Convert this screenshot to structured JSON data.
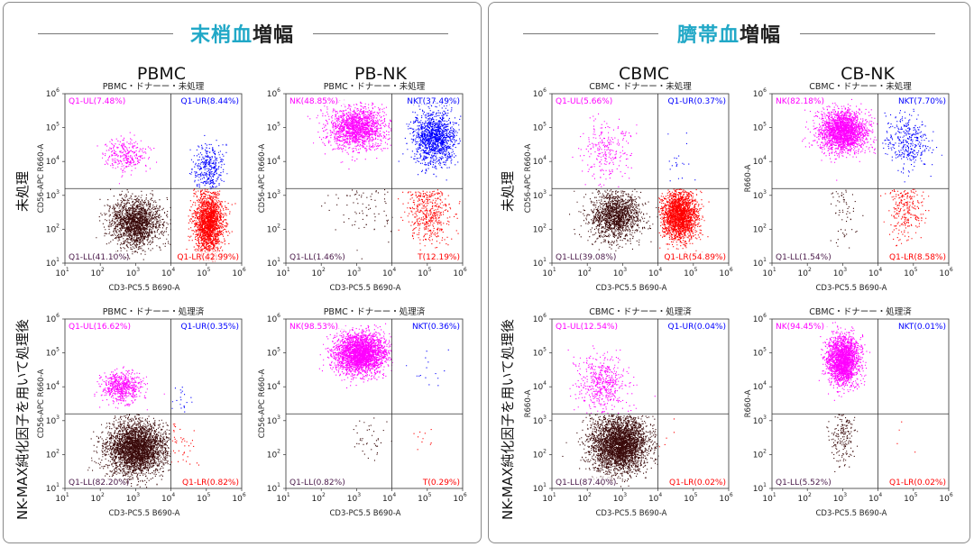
{
  "left": {
    "title_prefix": "末梢血",
    "title_suffix": "増幅",
    "col1": "PBMC",
    "col2": "PB-NK",
    "row1": "未処理",
    "row2": "NK-MAX純化因子を用いて処理後"
  },
  "right": {
    "title_prefix": "臍帯血",
    "title_suffix": "増幅",
    "col1": "CBMC",
    "col2": "CB-NK",
    "row1": "未処理",
    "row2": "NK-MAX純化因子を用いて処理後"
  },
  "axis": {
    "x_label": "CD3-PC5.5 B690-A",
    "ticks": [
      "10",
      "10",
      "10",
      "10",
      "10",
      "10"
    ],
    "tick_exp": [
      "1",
      "2",
      "3",
      "4",
      "5",
      "6"
    ]
  },
  "plots": [
    {
      "id": "pbmc-untreated",
      "title": "PBMC・ドナーー・未処理",
      "ylabel": "CD56-APC R660-A",
      "ul": "Q1-UL(7.48%)",
      "ur": "Q1-UR(8.44%)",
      "ll": "Q1-LL(41.10%)",
      "lr": "Q1-LR(42.99%)",
      "type": "pbmc"
    },
    {
      "id": "pbnk-untreated",
      "title": "PBMC・ドナーー・未処理",
      "ylabel": "CD56-APC R660-A",
      "ul": "NK(48.85%)",
      "ur": "NKT(37.49%)",
      "ll": "Q1-LL(1.46%)",
      "lr": "T(12.19%)",
      "type": "nk_mixed"
    },
    {
      "id": "pbmc-treated",
      "title": "PBMC・ドナーー・処理済",
      "ylabel": "CD56-APC R660-A",
      "ul": "Q1-UL(16.62%)",
      "ur": "Q1-UR(0.35%)",
      "ll": "Q1-LL(82.20%)",
      "lr": "Q1-LR(0.82%)",
      "type": "pbmc_treated"
    },
    {
      "id": "pbnk-treated",
      "title": "PBMC・ドナーー・処理済",
      "ylabel": "CD56-APC R660-A",
      "ul": "NK(98.53%)",
      "ur": "NKT(0.36%)",
      "ll": "Q1-LL(0.82%)",
      "lr": "T(0.29%)",
      "type": "nk_pure"
    },
    {
      "id": "cbmc-untreated",
      "title": "CBMC・ドナーー・未処理",
      "ylabel": "CD56-APC R660-A",
      "ul": "Q1-UL(5.66%)",
      "ur": "Q1-UR(0.37%)",
      "ll": "Q1-LL(39.08%)",
      "lr": "Q1-LR(54.89%)",
      "type": "cbmc"
    },
    {
      "id": "cbnk-untreated",
      "title": "CBMC・ドナーー・未処理",
      "ylabel": "R660-A",
      "ul": "NK(82.18%)",
      "ur": "NKT(7.70%)",
      "ll": "Q1-LL(1.54%)",
      "lr": "Q1-LR(8.58%)",
      "type": "cbnk"
    },
    {
      "id": "cbmc-treated",
      "title": "CBMC・ドナーー・処理済",
      "ylabel": "R660-A",
      "ul": "Q1-UL(12.54%)",
      "ur": "Q1-UR(0.04%)",
      "ll": "Q1-LL(87.40%)",
      "lr": "Q1-LR(0.02%)",
      "type": "cbmc_treated"
    },
    {
      "id": "cbnk-treated",
      "title": "CBMC・ドナーー・処理済",
      "ylabel": "R660-A",
      "ul": "NK(94.45%)",
      "ur": "NKT(0.01%)",
      "ll": "Q1-LL(5.52%)",
      "lr": "Q1-LR(0.02%)",
      "type": "nk_pure2"
    }
  ],
  "colors": {
    "ul": "#ff00ff",
    "ur": "#0000ff",
    "ll": "#3a0a0a",
    "lr": "#ff0000",
    "accent": "#21a8c7"
  }
}
